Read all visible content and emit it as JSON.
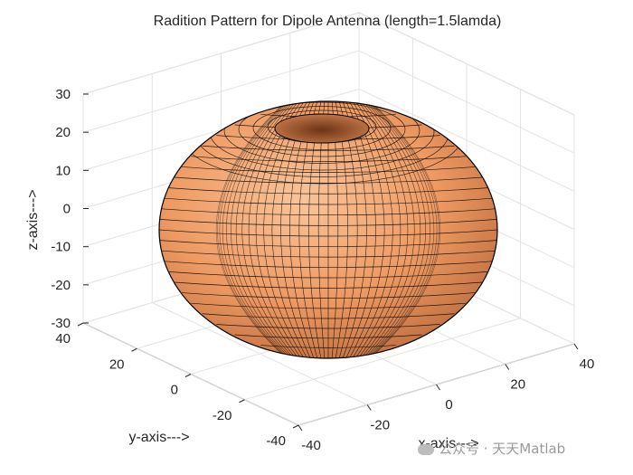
{
  "chart_data": {
    "type": "surface",
    "title": "Radition Pattern for Dipole Antenna (length=1.5lamda)",
    "xlabel": "x-axis--->",
    "ylabel": "y-axis--->",
    "zlabel": "z-axis--->",
    "xlim": [
      -40,
      40
    ],
    "ylim": [
      -40,
      40
    ],
    "zlim": [
      -30,
      30
    ],
    "xticks": [
      -40,
      -20,
      0,
      20,
      40
    ],
    "yticks": [
      -40,
      -20,
      0,
      20,
      40
    ],
    "zticks": [
      -30,
      -20,
      -10,
      0,
      10,
      20,
      30
    ],
    "grid": true,
    "surface_color": "#f4a56c",
    "edge_color": "#000000",
    "surface_extent": {
      "x": [
        -40,
        40
      ],
      "y": [
        -40,
        40
      ],
      "z": [
        -30,
        30
      ]
    }
  },
  "watermark": "公众号 · 天天Matlab"
}
